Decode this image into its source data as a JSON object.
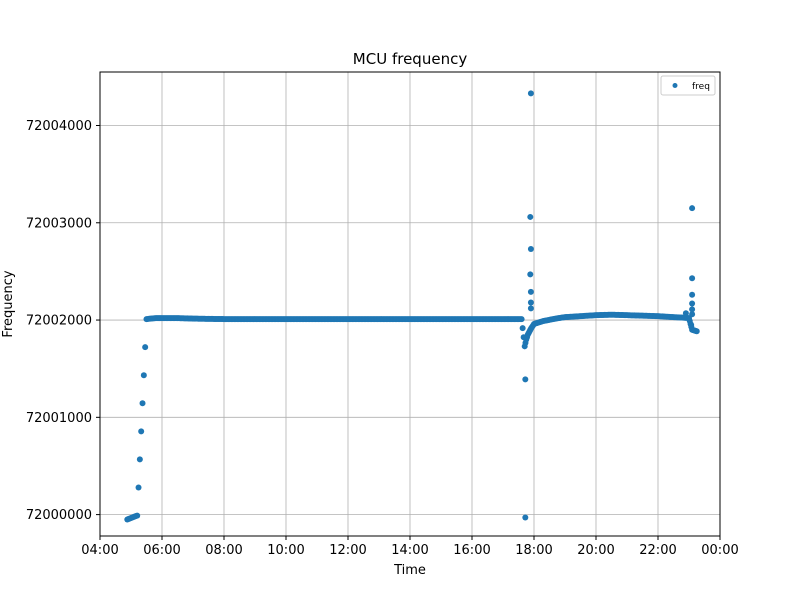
{
  "chart_data": {
    "type": "scatter",
    "title": "MCU frequency",
    "xlabel": "Time",
    "ylabel": "Frequency",
    "x_tick_labels": [
      "04:00",
      "06:00",
      "08:00",
      "10:00",
      "12:00",
      "14:00",
      "16:00",
      "18:00",
      "20:00",
      "22:00",
      "00:00"
    ],
    "x_ticks_hours": [
      4,
      6,
      8,
      10,
      12,
      14,
      16,
      18,
      20,
      22,
      24
    ],
    "y_tick_labels": [
      "72000000",
      "72001000",
      "72002000",
      "72003000",
      "72004000"
    ],
    "y_ticks": [
      72000000,
      72001000,
      72002000,
      72003000,
      72004000
    ],
    "xlim": [
      4.0,
      24.0
    ],
    "ylim": [
      71999780,
      72004550
    ],
    "grid": true,
    "legend_position": "top-right",
    "series": [
      {
        "name": "freq",
        "color": "#1f77b4",
        "baseline": [
          [
            4.88,
            71999950
          ],
          [
            5.0,
            71999965
          ],
          [
            5.2,
            71999990
          ],
          [
            5.5,
            72002010
          ],
          [
            5.8,
            72002020
          ],
          [
            6.0,
            72002020
          ],
          [
            6.5,
            72002020
          ],
          [
            7.0,
            72002015
          ],
          [
            7.5,
            72002012
          ],
          [
            8.0,
            72002010
          ],
          [
            10.0,
            72002010
          ],
          [
            12.0,
            72002010
          ],
          [
            14.0,
            72002010
          ],
          [
            16.0,
            72002010
          ],
          [
            17.0,
            72002010
          ],
          [
            17.6,
            72002010
          ],
          [
            17.7,
            72001730
          ],
          [
            17.75,
            72001800
          ],
          [
            17.8,
            72001850
          ],
          [
            17.85,
            72001880
          ],
          [
            17.9,
            72001910
          ],
          [
            18.0,
            72001960
          ],
          [
            18.3,
            72001990
          ],
          [
            18.7,
            72002015
          ],
          [
            19.0,
            72002030
          ],
          [
            19.5,
            72002040
          ],
          [
            20.0,
            72002050
          ],
          [
            20.5,
            72002055
          ],
          [
            21.0,
            72002050
          ],
          [
            21.5,
            72002045
          ],
          [
            22.0,
            72002040
          ],
          [
            22.5,
            72002030
          ],
          [
            22.8,
            72002025
          ],
          [
            23.0,
            72002020
          ],
          [
            23.05,
            72001960
          ],
          [
            23.1,
            72001900
          ],
          [
            23.2,
            72001890
          ],
          [
            23.25,
            72001885
          ]
        ],
        "outliers": [
          [
            17.9,
            72004330
          ],
          [
            17.88,
            72003060
          ],
          [
            17.9,
            72002730
          ],
          [
            17.88,
            72002470
          ],
          [
            17.9,
            72002290
          ],
          [
            17.9,
            72002180
          ],
          [
            17.9,
            72002120
          ],
          [
            17.72,
            72001390
          ],
          [
            17.72,
            71999970
          ],
          [
            22.9,
            72002070
          ],
          [
            23.1,
            72003150
          ],
          [
            23.1,
            72002430
          ],
          [
            23.1,
            72002260
          ],
          [
            23.1,
            72002170
          ],
          [
            23.1,
            72002110
          ],
          [
            23.1,
            72002060
          ],
          [
            23.07,
            72001950
          ]
        ]
      }
    ]
  }
}
